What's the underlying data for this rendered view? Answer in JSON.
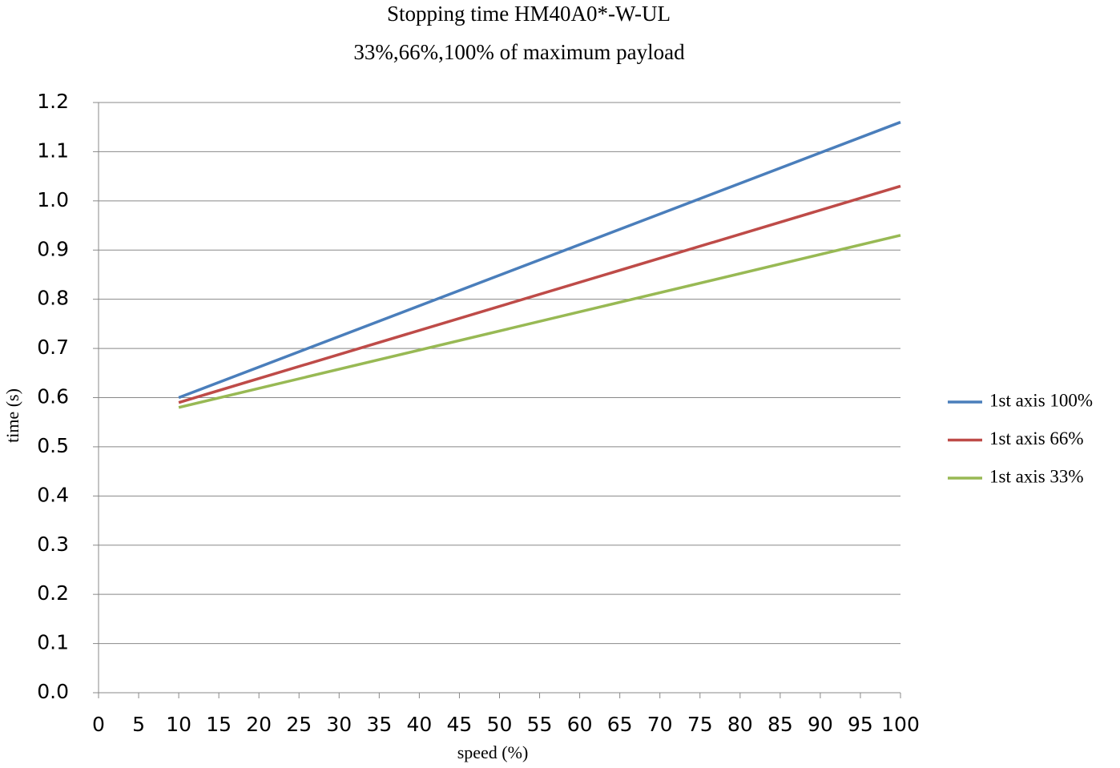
{
  "chart_data": {
    "type": "line",
    "title": "Stopping time HM40A0*-W-UL",
    "subtitle": "33%,66%,100% of maximum payload",
    "x_label": "speed (%)",
    "y_label": "time (s)",
    "x": [
      10,
      100
    ],
    "series": [
      {
        "name": "1st axis 100%",
        "color": "#4a7ebb",
        "values": [
          0.6,
          1.16
        ]
      },
      {
        "name": "1st axis 66%",
        "color": "#be4b48",
        "values": [
          0.59,
          1.03
        ]
      },
      {
        "name": "1st axis 33%",
        "color": "#98b954",
        "values": [
          0.58,
          0.93
        ]
      }
    ],
    "xlim": [
      0,
      100
    ],
    "xticks": [
      0,
      5,
      10,
      15,
      20,
      25,
      30,
      35,
      40,
      45,
      50,
      55,
      60,
      65,
      70,
      75,
      80,
      85,
      90,
      95,
      100
    ],
    "ylim": [
      0,
      1.2
    ],
    "yticks": [
      {
        "value": 0,
        "label": "0.0"
      },
      0.1,
      0.2,
      0.3,
      0.4,
      0.5,
      0.6,
      0.7,
      0.8,
      0.9,
      {
        "value": 1,
        "label": "1.0"
      },
      1.1,
      1.2
    ],
    "grid": true,
    "legend": "right"
  }
}
